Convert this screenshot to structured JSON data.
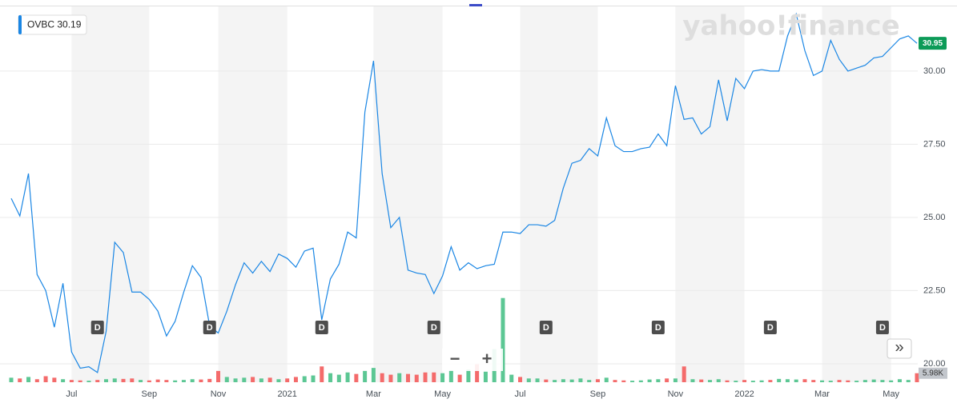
{
  "chart_data": {
    "type": "line",
    "watermark": "yahoo!finance",
    "legend_value": 30.19,
    "current_price": 30.95,
    "current_volume": {
      "value": 5980,
      "label": "5.98K"
    },
    "zoom_out": "−",
    "zoom_in": "+",
    "more": "»",
    "categories": [
      null,
      null,
      null,
      null,
      null,
      null,
      null,
      "Jul",
      null,
      null,
      null,
      null,
      null,
      null,
      null,
      null,
      "Sep",
      null,
      null,
      null,
      null,
      null,
      null,
      null,
      "Nov",
      null,
      null,
      null,
      null,
      null,
      null,
      null,
      "2021",
      null,
      null,
      null,
      null,
      null,
      null,
      null,
      null,
      null,
      "Mar",
      null,
      null,
      null,
      null,
      null,
      null,
      null,
      "May",
      null,
      null,
      null,
      null,
      null,
      null,
      null,
      null,
      "Jul",
      null,
      null,
      null,
      null,
      null,
      null,
      null,
      null,
      "Sep",
      null,
      null,
      null,
      null,
      null,
      null,
      null,
      null,
      "Nov",
      null,
      null,
      null,
      null,
      null,
      null,
      null,
      "2022",
      null,
      null,
      null,
      null,
      null,
      null,
      null,
      null,
      "Mar",
      null,
      null,
      null,
      null,
      null,
      null,
      null,
      "May",
      null,
      null,
      null
    ],
    "dividends": [
      null,
      null,
      null,
      null,
      null,
      null,
      null,
      null,
      null,
      null,
      "D",
      null,
      null,
      null,
      null,
      null,
      null,
      null,
      null,
      null,
      null,
      null,
      null,
      "D",
      null,
      null,
      null,
      null,
      null,
      null,
      null,
      null,
      null,
      null,
      null,
      null,
      "D",
      null,
      null,
      null,
      null,
      null,
      null,
      null,
      null,
      null,
      null,
      null,
      null,
      "D",
      null,
      null,
      null,
      null,
      null,
      null,
      null,
      null,
      null,
      null,
      null,
      null,
      "D",
      null,
      null,
      null,
      null,
      null,
      null,
      null,
      null,
      null,
      null,
      null,
      null,
      "D",
      null,
      null,
      null,
      null,
      null,
      null,
      null,
      null,
      null,
      null,
      null,
      null,
      "D",
      null,
      null,
      null,
      null,
      null,
      null,
      null,
      null,
      null,
      null,
      null,
      null,
      "D",
      null,
      null,
      null,
      null
    ],
    "series": [
      {
        "name": "OVBC",
        "color": "#1a86e4",
        "values": [
          25.65,
          25.05,
          26.5,
          23.05,
          22.5,
          21.25,
          22.75,
          20.4,
          19.85,
          19.9,
          19.7,
          21.1,
          24.15,
          23.8,
          22.45,
          22.45,
          22.2,
          21.8,
          20.95,
          21.45,
          22.45,
          23.35,
          22.95,
          21.3,
          21.05,
          21.8,
          22.7,
          23.45,
          23.1,
          23.5,
          23.15,
          23.75,
          23.6,
          23.3,
          23.85,
          23.95,
          21.5,
          22.9,
          23.4,
          24.5,
          24.3,
          28.6,
          30.35,
          26.5,
          24.65,
          25.0,
          23.2,
          23.1,
          23.05,
          22.4,
          23.0,
          24.0,
          23.2,
          23.45,
          23.25,
          23.35,
          23.4,
          24.5,
          24.5,
          24.45,
          24.75,
          24.75,
          24.7,
          24.9,
          26.0,
          26.85,
          26.95,
          27.35,
          27.1,
          28.4,
          27.45,
          27.25,
          27.25,
          27.35,
          27.4,
          27.85,
          27.45,
          29.5,
          28.35,
          28.4,
          27.85,
          28.1,
          29.7,
          28.3,
          29.75,
          29.4,
          30.0,
          30.05,
          30.0,
          30.0,
          31.2,
          31.95,
          30.7,
          29.85,
          30.0,
          31.05,
          30.4,
          30.0,
          30.1,
          30.2,
          30.45,
          30.5,
          30.8,
          31.1,
          31.2,
          30.95
        ]
      },
      {
        "name": "Volume",
        "axis": "y2",
        "up_color": "#5cc794",
        "down_color": "#f46b6b",
        "values": [
          3000,
          2500,
          3500,
          2000,
          4000,
          3000,
          2000,
          1500,
          1200,
          1000,
          1500,
          2000,
          2500,
          2200,
          2500,
          1500,
          1200,
          1800,
          1500,
          1200,
          1500,
          2000,
          1800,
          2200,
          7500,
          3500,
          2500,
          3000,
          3500,
          2500,
          3000,
          2000,
          2500,
          3500,
          4000,
          4500,
          10500,
          6000,
          5000,
          6500,
          5500,
          7500,
          9500,
          6000,
          5000,
          6000,
          5500,
          5000,
          6500,
          6500,
          6000,
          8000,
          5000,
          8500,
          12000,
          7000,
          22000,
          56000,
          5000,
          3500,
          2500,
          2500,
          1800,
          1500,
          2000,
          1800,
          2500,
          1500,
          2000,
          3000,
          1500,
          1200,
          1000,
          1200,
          1800,
          2000,
          2500,
          2500,
          10500,
          2000,
          1800,
          1500,
          2000,
          1200,
          1000,
          1500,
          1000,
          1200,
          1500,
          2200,
          2000,
          1800,
          2000,
          1500,
          1200,
          1000,
          1500,
          1200,
          1000,
          1500,
          1800,
          1500,
          1200,
          2000,
          1500,
          5980
        ]
      }
    ],
    "ylim": [
      19.37,
      32.21
    ],
    "yticks": [
      {
        "value": 20,
        "label": "20.00"
      },
      {
        "value": 22.5,
        "label": "22.50"
      },
      {
        "value": 25,
        "label": "25.00"
      },
      {
        "value": 27.5,
        "label": "27.50"
      },
      {
        "value": 30,
        "label": "30.00"
      }
    ],
    "y2lim": [
      0,
      250000
    ],
    "grid": true
  }
}
